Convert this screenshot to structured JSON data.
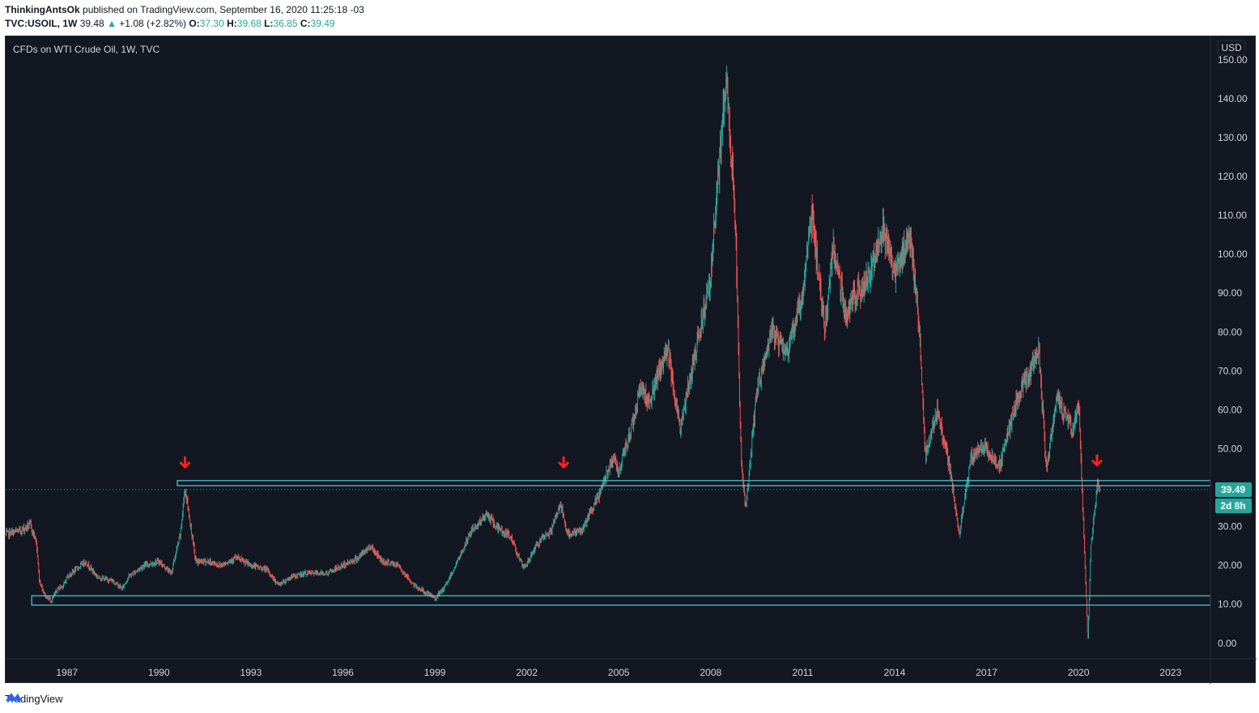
{
  "header": {
    "author": "ThinkingAntsOk",
    "published": "published on TradingView.com, September 16, 2020 11:25:18 -03",
    "symbol": "TVC:USOIL, 1W",
    "last": "39.48",
    "change": "+1.08 (+2.82%)",
    "o_label": "O:",
    "o": "37.30",
    "h_label": "H:",
    "h": "39.68",
    "l_label": "L:",
    "l": "36.85",
    "c_label": "C:",
    "c": "39.49"
  },
  "footer": {
    "brand": "TradingView"
  },
  "colors": {
    "bg": "#131722",
    "up": "#26a69a",
    "down": "#ef5350",
    "zone": "#4dd0e1",
    "arrow": "#ff1f1f"
  },
  "chart_data": {
    "type": "candlestick",
    "title": "CFDs on WTI Crude Oil, 1W, TVC",
    "currency": "USD",
    "y_ticks": [
      0,
      10,
      20,
      30,
      40,
      50,
      60,
      70,
      80,
      90,
      100,
      110,
      120,
      130,
      140,
      150
    ],
    "y_tick_labels": [
      "0.00",
      "10.00",
      "20.00",
      "30.00",
      "40.00",
      "50.00",
      "60.00",
      "70.00",
      "80.00",
      "90.00",
      "100.00",
      "110.00",
      "120.00",
      "130.00",
      "140.00",
      "150.00"
    ],
    "ylim": [
      -4,
      156
    ],
    "x_ticks": [
      1987,
      1990,
      1993,
      1996,
      1999,
      2002,
      2005,
      2008,
      2011,
      2014,
      2017,
      2020,
      2023
    ],
    "xlim": [
      1985.0,
      2024.3
    ],
    "last_price": 39.49,
    "last_price_label": "39.49",
    "countdown": "2d 8h",
    "zones": [
      {
        "name": "resistance-zone",
        "x_start": 1990.6,
        "y_low": 40.5,
        "y_high": 41.8
      },
      {
        "name": "support-zone",
        "x_start": 1985.85,
        "y_low": 9.8,
        "y_high": 12.2
      }
    ],
    "arrows": [
      {
        "x": 1990.85,
        "y": 45.5
      },
      {
        "x": 2003.2,
        "y": 45.5
      },
      {
        "x": 2020.6,
        "y": 46
      }
    ],
    "path": [
      [
        1985.0,
        28
      ],
      [
        1985.5,
        29
      ],
      [
        1985.8,
        30.5
      ],
      [
        1986.0,
        26
      ],
      [
        1986.1,
        16
      ],
      [
        1986.3,
        12
      ],
      [
        1986.5,
        11
      ],
      [
        1986.7,
        14
      ],
      [
        1986.9,
        15
      ],
      [
        1987.0,
        17
      ],
      [
        1987.3,
        19
      ],
      [
        1987.6,
        21
      ],
      [
        1988.0,
        17
      ],
      [
        1988.5,
        16
      ],
      [
        1988.8,
        14
      ],
      [
        1989.0,
        17
      ],
      [
        1989.5,
        20
      ],
      [
        1990.0,
        21
      ],
      [
        1990.4,
        18
      ],
      [
        1990.7,
        28
      ],
      [
        1990.85,
        40
      ],
      [
        1991.0,
        32
      ],
      [
        1991.2,
        21
      ],
      [
        1991.6,
        21
      ],
      [
        1992.0,
        20
      ],
      [
        1992.5,
        22
      ],
      [
        1993.0,
        20
      ],
      [
        1993.5,
        19
      ],
      [
        1993.9,
        15
      ],
      [
        1994.3,
        17
      ],
      [
        1994.8,
        18
      ],
      [
        1995.5,
        18
      ],
      [
        1996.0,
        20
      ],
      [
        1996.5,
        22
      ],
      [
        1996.9,
        25
      ],
      [
        1997.3,
        21
      ],
      [
        1997.8,
        20
      ],
      [
        1998.3,
        15
      ],
      [
        1998.8,
        12.5
      ],
      [
        1999.0,
        11.5
      ],
      [
        1999.3,
        14
      ],
      [
        1999.8,
        22
      ],
      [
        2000.2,
        29
      ],
      [
        2000.7,
        33
      ],
      [
        2001.0,
        30
      ],
      [
        2001.5,
        27
      ],
      [
        2001.9,
        19
      ],
      [
        2002.3,
        25
      ],
      [
        2002.8,
        29
      ],
      [
        2003.1,
        36
      ],
      [
        2003.3,
        28
      ],
      [
        2003.8,
        29
      ],
      [
        2004.3,
        37
      ],
      [
        2004.8,
        48
      ],
      [
        2005.0,
        44
      ],
      [
        2005.4,
        55
      ],
      [
        2005.7,
        66
      ],
      [
        2006.0,
        62
      ],
      [
        2006.6,
        76
      ],
      [
        2007.0,
        55
      ],
      [
        2007.5,
        75
      ],
      [
        2008.0,
        95
      ],
      [
        2008.5,
        145
      ],
      [
        2008.8,
        110
      ],
      [
        2009.0,
        45
      ],
      [
        2009.15,
        35
      ],
      [
        2009.5,
        65
      ],
      [
        2010.0,
        80
      ],
      [
        2010.5,
        75
      ],
      [
        2011.0,
        90
      ],
      [
        2011.3,
        112
      ],
      [
        2011.7,
        80
      ],
      [
        2012.0,
        102
      ],
      [
        2012.4,
        85
      ],
      [
        2012.8,
        90
      ],
      [
        2013.2,
        95
      ],
      [
        2013.6,
        108
      ],
      [
        2014.0,
        95
      ],
      [
        2014.5,
        105
      ],
      [
        2014.8,
        82
      ],
      [
        2015.0,
        48
      ],
      [
        2015.4,
        60
      ],
      [
        2015.8,
        45
      ],
      [
        2016.1,
        28
      ],
      [
        2016.5,
        48
      ],
      [
        2016.9,
        51
      ],
      [
        2017.4,
        45
      ],
      [
        2018.0,
        63
      ],
      [
        2018.7,
        75
      ],
      [
        2018.95,
        45
      ],
      [
        2019.3,
        63
      ],
      [
        2019.8,
        55
      ],
      [
        2020.0,
        62
      ],
      [
        2020.2,
        22
      ],
      [
        2020.3,
        0
      ],
      [
        2020.4,
        25
      ],
      [
        2020.6,
        40
      ],
      [
        2020.7,
        39.5
      ]
    ]
  }
}
